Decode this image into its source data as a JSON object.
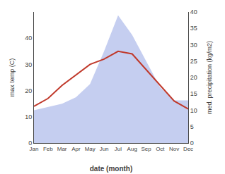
{
  "chart_data": {
    "type": "line",
    "xlabel": "date (month)",
    "ylabel": "max temp (C)",
    "y2label": "med. precipitation (kg/m2)",
    "categories": [
      "Jan",
      "Feb",
      "Mar",
      "Apr",
      "May",
      "Jun",
      "Jul",
      "Aug",
      "Sep",
      "Oct",
      "Nov",
      "Dec"
    ],
    "series": [
      {
        "type": "area",
        "axis": "y2",
        "color": "#c5cef0",
        "values": [
          10,
          11,
          12,
          14,
          18,
          28,
          39,
          33,
          25,
          17,
          13,
          13
        ]
      },
      {
        "type": "line",
        "color": "#c0392b",
        "values": [
          14,
          17,
          22,
          26,
          30,
          32,
          35,
          34,
          28,
          22,
          16,
          13
        ]
      }
    ],
    "ylim": [
      0,
      50
    ],
    "yticks": [
      0,
      10,
      20,
      30,
      40
    ],
    "y2lim": [
      0,
      40
    ],
    "y2ticks": [
      0,
      5,
      10,
      15,
      20,
      25,
      30,
      35,
      40
    ],
    "grid": false
  }
}
